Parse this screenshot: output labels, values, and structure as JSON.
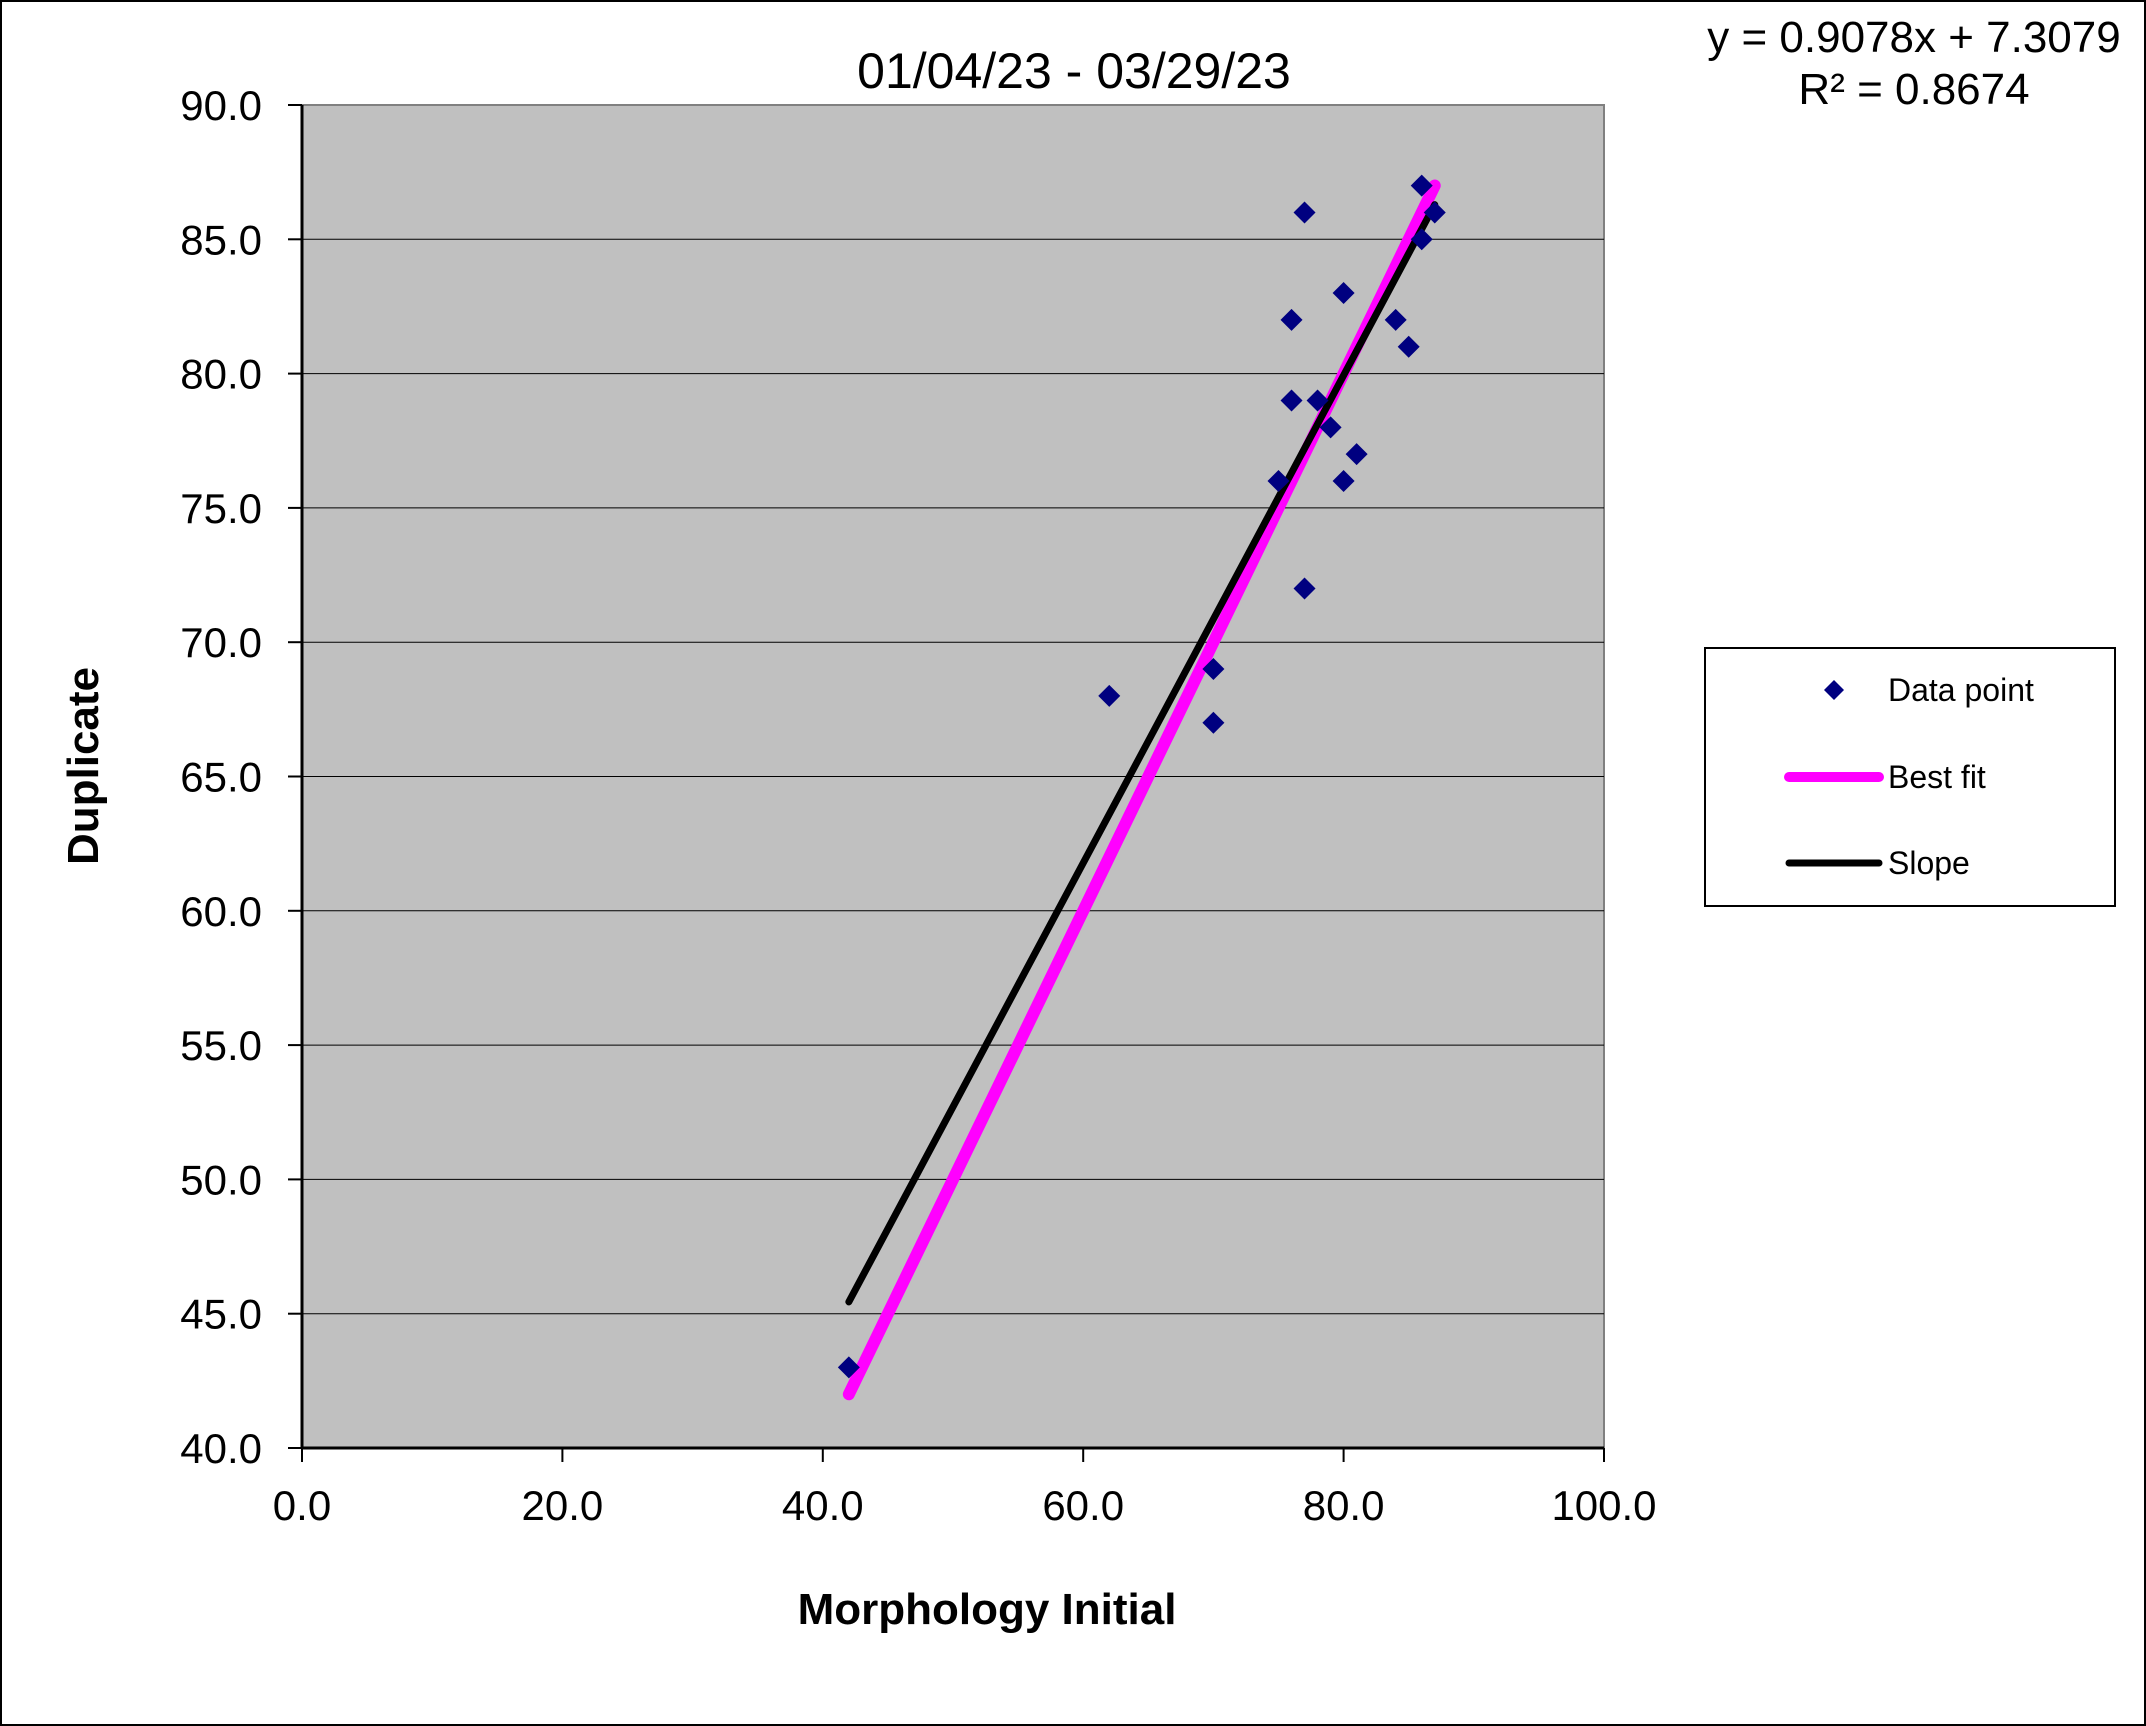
{
  "chart_data": {
    "type": "scatter",
    "title": "01/04/23 - 03/29/23",
    "xlabel": "Morphology Initial",
    "ylabel": "Duplicate",
    "xlim": [
      0,
      100
    ],
    "ylim": [
      40,
      90
    ],
    "x_ticks": [
      "0.0",
      "20.0",
      "40.0",
      "60.0",
      "80.0",
      "100.0"
    ],
    "y_ticks": [
      "40.0",
      "45.0",
      "50.0",
      "55.0",
      "60.0",
      "65.0",
      "70.0",
      "75.0",
      "80.0",
      "85.0",
      "90.0"
    ],
    "grid": "horizontal",
    "plot_background": "#c0c0c0",
    "equation": "y = 0.9078x + 7.3079",
    "r_squared": "R² = 0.8674",
    "legend_position": "right",
    "series": [
      {
        "name": "Data point",
        "kind": "scatter",
        "marker": "diamond",
        "color": "#000080",
        "points": [
          {
            "x": 42,
            "y": 43
          },
          {
            "x": 62,
            "y": 68
          },
          {
            "x": 70,
            "y": 69
          },
          {
            "x": 70,
            "y": 67
          },
          {
            "x": 75,
            "y": 76
          },
          {
            "x": 76,
            "y": 82
          },
          {
            "x": 76,
            "y": 79
          },
          {
            "x": 77,
            "y": 86
          },
          {
            "x": 77,
            "y": 72
          },
          {
            "x": 78,
            "y": 79
          },
          {
            "x": 79,
            "y": 78
          },
          {
            "x": 80,
            "y": 83
          },
          {
            "x": 80,
            "y": 76
          },
          {
            "x": 81,
            "y": 77
          },
          {
            "x": 84,
            "y": 82
          },
          {
            "x": 85,
            "y": 81
          },
          {
            "x": 86,
            "y": 87
          },
          {
            "x": 86,
            "y": 85
          },
          {
            "x": 87,
            "y": 86
          }
        ]
      },
      {
        "name": "Best fit",
        "kind": "line",
        "color": "#ff00ff",
        "points": [
          {
            "x": 42,
            "y": 42
          },
          {
            "x": 87,
            "y": 87
          }
        ]
      },
      {
        "name": "Slope",
        "kind": "line",
        "color": "#000000",
        "points": [
          {
            "x": 42,
            "y": 45.44
          },
          {
            "x": 87,
            "y": 86.29
          }
        ]
      }
    ]
  }
}
